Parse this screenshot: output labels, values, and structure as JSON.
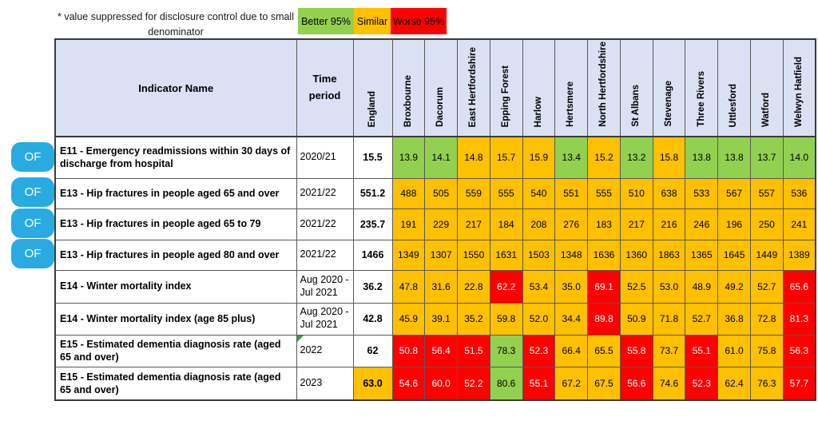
{
  "note": "* value suppressed for disclosure control due to small denominator",
  "legend": [
    {
      "label": "Better 95%",
      "status": "better"
    },
    {
      "label": "Similar",
      "status": "similar"
    },
    {
      "label": "Worse 95%",
      "status": "worse"
    }
  ],
  "colors": {
    "better": "#92D050",
    "similar": "#FFC000",
    "worse": "#FF0000",
    "header_bg": "#D9E1F2",
    "of_button": "#29ABE2"
  },
  "of_button_label": "OF",
  "table": {
    "header": {
      "indicator": "Indicator Name",
      "time": "Time period",
      "areas": [
        "England",
        "Broxbourne",
        "Dacorum",
        "East Hertfordshire",
        "Epping Forest",
        "Harlow",
        "Hertsmere",
        "North Hertfordshire",
        "St Albans",
        "Stevenage",
        "Three Rivers",
        "Uttlesford",
        "Watford",
        "Welwyn Hatfield"
      ]
    },
    "rows": [
      {
        "indicator": "E11 - Emergency readmissions within 30 days of discharge from hospital",
        "time": "2020/21",
        "england": "15.5",
        "england_status": "none",
        "of": true,
        "time_marker": false,
        "values": [
          "13.9",
          "14.1",
          "14.8",
          "15.7",
          "15.9",
          "13.4",
          "15.2",
          "13.2",
          "15.8",
          "13.8",
          "13.8",
          "13.7",
          "14.0"
        ],
        "status": [
          "B",
          "B",
          "S",
          "S",
          "S",
          "B",
          "S",
          "B",
          "S",
          "B",
          "B",
          "B",
          "B"
        ]
      },
      {
        "indicator": "E13 - Hip fractures in people aged 65 and over",
        "time": "2021/22",
        "england": "551.2",
        "england_status": "none",
        "of": true,
        "time_marker": false,
        "values": [
          "488",
          "505",
          "559",
          "555",
          "540",
          "551",
          "555",
          "510",
          "638",
          "533",
          "567",
          "557",
          "536"
        ],
        "status": [
          "S",
          "S",
          "S",
          "S",
          "S",
          "S",
          "S",
          "S",
          "S",
          "S",
          "S",
          "S",
          "S"
        ]
      },
      {
        "indicator": "E13 - Hip fractures in people aged 65 to 79",
        "time": "2021/22",
        "england": "235.7",
        "england_status": "none",
        "of": true,
        "time_marker": false,
        "values": [
          "191",
          "229",
          "217",
          "184",
          "208",
          "276",
          "183",
          "217",
          "216",
          "246",
          "196",
          "250",
          "241"
        ],
        "status": [
          "S",
          "S",
          "S",
          "S",
          "S",
          "S",
          "S",
          "S",
          "S",
          "S",
          "S",
          "S",
          "S"
        ]
      },
      {
        "indicator": "E13 - Hip fractures in people aged 80 and over",
        "time": "2021/22",
        "england": "1466",
        "england_status": "none",
        "of": true,
        "time_marker": false,
        "values": [
          "1349",
          "1307",
          "1550",
          "1631",
          "1503",
          "1348",
          "1636",
          "1360",
          "1863",
          "1365",
          "1645",
          "1449",
          "1389"
        ],
        "status": [
          "S",
          "S",
          "S",
          "S",
          "S",
          "S",
          "S",
          "S",
          "S",
          "S",
          "S",
          "S",
          "S"
        ]
      },
      {
        "indicator": "E14 - Winter mortality index",
        "time": "Aug 2020 - Jul 2021",
        "england": "36.2",
        "england_status": "none",
        "of": false,
        "time_marker": false,
        "values": [
          "47.8",
          "31.6",
          "22.8",
          "62.2",
          "53.4",
          "35.0",
          "69.1",
          "52.5",
          "53.0",
          "48.9",
          "49.2",
          "52.7",
          "65.6"
        ],
        "status": [
          "S",
          "S",
          "S",
          "W",
          "S",
          "S",
          "W",
          "S",
          "S",
          "S",
          "S",
          "S",
          "W"
        ]
      },
      {
        "indicator": "E14 - Winter mortality index (age 85 plus)",
        "time": "Aug 2020 - Jul 2021",
        "england": "42.8",
        "england_status": "none",
        "of": false,
        "time_marker": false,
        "values": [
          "45.9",
          "39.1",
          "35.2",
          "59.8",
          "52.0",
          "34.4",
          "89.8",
          "50.9",
          "71.8",
          "52.7",
          "36.8",
          "72.8",
          "81.3"
        ],
        "status": [
          "S",
          "S",
          "S",
          "S",
          "S",
          "S",
          "W",
          "S",
          "S",
          "S",
          "S",
          "S",
          "W"
        ]
      },
      {
        "indicator": "E15 - Estimated dementia diagnosis rate (aged 65 and over)",
        "time": "2022",
        "england": "62",
        "england_status": "none",
        "of": false,
        "time_marker": true,
        "values": [
          "50.8",
          "56.4",
          "51.5",
          "78.3",
          "52.3",
          "66.4",
          "65.5",
          "55.8",
          "73.7",
          "55.1",
          "61.0",
          "75.8",
          "56.3"
        ],
        "status": [
          "W",
          "W",
          "W",
          "B",
          "W",
          "S",
          "S",
          "W",
          "S",
          "W",
          "S",
          "S",
          "W"
        ]
      },
      {
        "indicator": "E15 - Estimated dementia diagnosis rate (aged 65 and over)",
        "time": "2023",
        "england": "63.0",
        "england_status": "S",
        "of": false,
        "time_marker": false,
        "values": [
          "54.6",
          "60.0",
          "52.2",
          "80.6",
          "55.1",
          "67.2",
          "67.5",
          "56.6",
          "74.6",
          "52.3",
          "62.4",
          "76.3",
          "57.7"
        ],
        "status": [
          "W",
          "W",
          "W",
          "B",
          "W",
          "S",
          "S",
          "W",
          "S",
          "W",
          "S",
          "S",
          "W"
        ]
      }
    ]
  }
}
